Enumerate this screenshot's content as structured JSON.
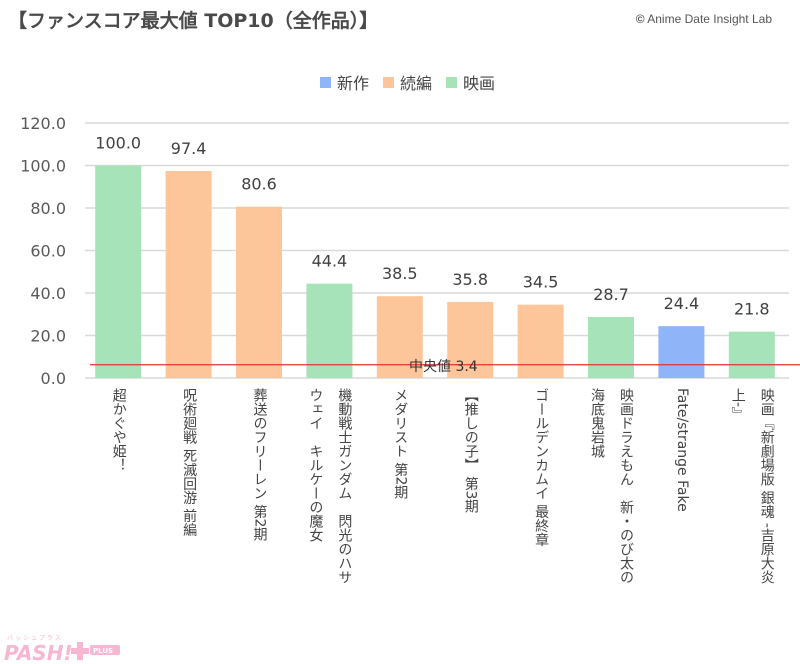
{
  "header": {
    "title": "【ファンスコア最大値 TOP10（全作品）】",
    "credit_symbol": "©",
    "credit": "Anime Date Insight Lab"
  },
  "legend": [
    {
      "label": "新作",
      "color": "#8fb4f7"
    },
    {
      "label": "続編",
      "color": "#fdc59a"
    },
    {
      "label": "映画",
      "color": "#a6e3b8"
    }
  ],
  "logo": {
    "text": "PASH!+",
    "sub": "PLUS",
    "kana": "パッシュプラス",
    "color": "#f7b6d2"
  },
  "chart_data": {
    "type": "bar",
    "title": "【ファンスコア最大値 TOP10（全作品）】",
    "xlabel": "",
    "ylabel": "",
    "ylim": [
      0,
      120
    ],
    "yticks": [
      "0.0",
      "20.0",
      "40.0",
      "60.0",
      "80.0",
      "100.0",
      "120.0"
    ],
    "ytick_values": [
      0,
      20,
      40,
      60,
      80,
      100,
      120
    ],
    "grid": true,
    "legend_position": "top-center",
    "categories": [
      [
        "超かぐや姫！"
      ],
      [
        "呪術廻戦 死滅回游 前編"
      ],
      [
        "葬送のフリーレン 第2期"
      ],
      [
        "機動戦士ガンダム　閃光のハサ",
        "ウェイ　キルケーの魔女"
      ],
      [
        "メダリスト 第2期"
      ],
      [
        "【推しの子】 第3期"
      ],
      [
        "ゴールデンカムイ 最終章"
      ],
      [
        "映画ドラえもん　新・のび太の",
        "海底鬼岩城"
      ],
      [
        "Fate/strange Fake"
      ],
      [
        "映画『新劇場版 銀魂 -吉原大炎",
        "上-』"
      ]
    ],
    "values": [
      100.0,
      97.4,
      80.6,
      44.4,
      38.5,
      35.8,
      34.5,
      28.7,
      24.4,
      21.8
    ],
    "value_labels": [
      "100.0",
      "97.4",
      "80.6",
      "44.4",
      "38.5",
      "35.8",
      "34.5",
      "28.7",
      "24.4",
      "21.8"
    ],
    "series_type": [
      "映画",
      "続編",
      "続編",
      "映画",
      "続編",
      "続編",
      "続編",
      "映画",
      "新作",
      "映画"
    ],
    "type_colors": {
      "新作": "#8fb4f7",
      "続編": "#fdc59a",
      "映画": "#a6e3b8"
    },
    "median": {
      "value": 3.4,
      "label": "中央値 3.4",
      "color": "#e8312f"
    }
  }
}
